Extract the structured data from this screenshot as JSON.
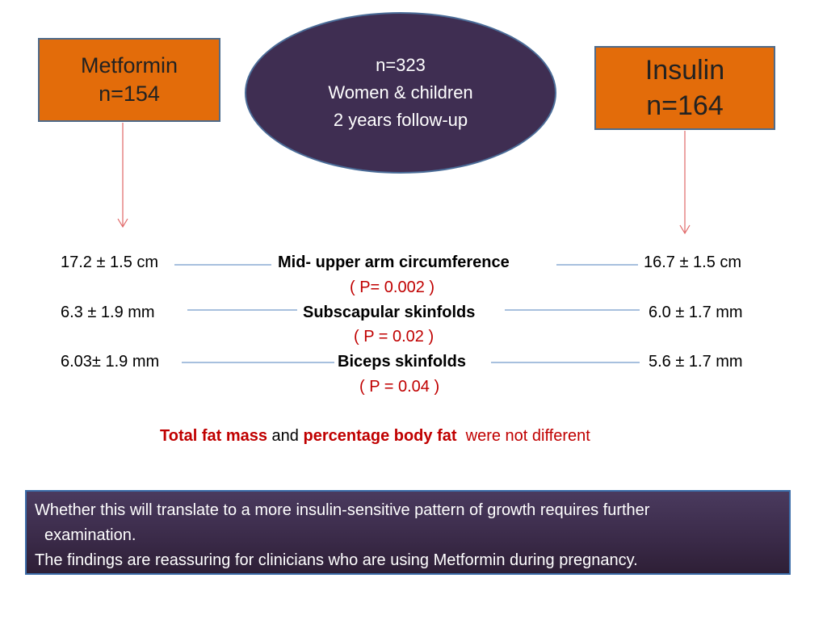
{
  "left_box": {
    "line1": "Metformin",
    "line2": "n=154"
  },
  "right_box": {
    "line1": "Insulin",
    "line2": "n=164"
  },
  "center": {
    "line1": "n=323",
    "line2": "Women & children",
    "line3": "2 years  follow-up"
  },
  "measures": [
    {
      "metformin": "17.2 ± 1.5 cm",
      "label": "Mid- upper arm circumference",
      "insulin": "16.7 ± 1.5 cm",
      "p": "( P= 0.002 )"
    },
    {
      "metformin": "6.3 ± 1.9  mm",
      "label": "Subscapular  skinfolds",
      "insulin": "6.0  ± 1.7 mm",
      "p": "( P = 0.02 )"
    },
    {
      "metformin": "6.03± 1.9  mm",
      "label": "Biceps  skinfolds",
      "insulin": "5.6 ±  1.7 mm",
      "p": "( P = 0.04 )"
    }
  ],
  "summary": {
    "part1": "Total  fat mass",
    "part2": " and ",
    "part3": "percentage body fat",
    "part4": "  were not different"
  },
  "footer": {
    "line1": "Whether this will translate to a more insulin-sensitive pattern of growth requires further",
    "line2": "examination.",
    "line3": "The findings are reassuring for clinicians who are using Metformin during pregnancy."
  },
  "colors": {
    "box_fill": "#e36c0a",
    "ellipse_fill": "#3f2e52",
    "arrow": "#e06666",
    "connector": "#4f81bd",
    "p_value": "#c00000"
  }
}
